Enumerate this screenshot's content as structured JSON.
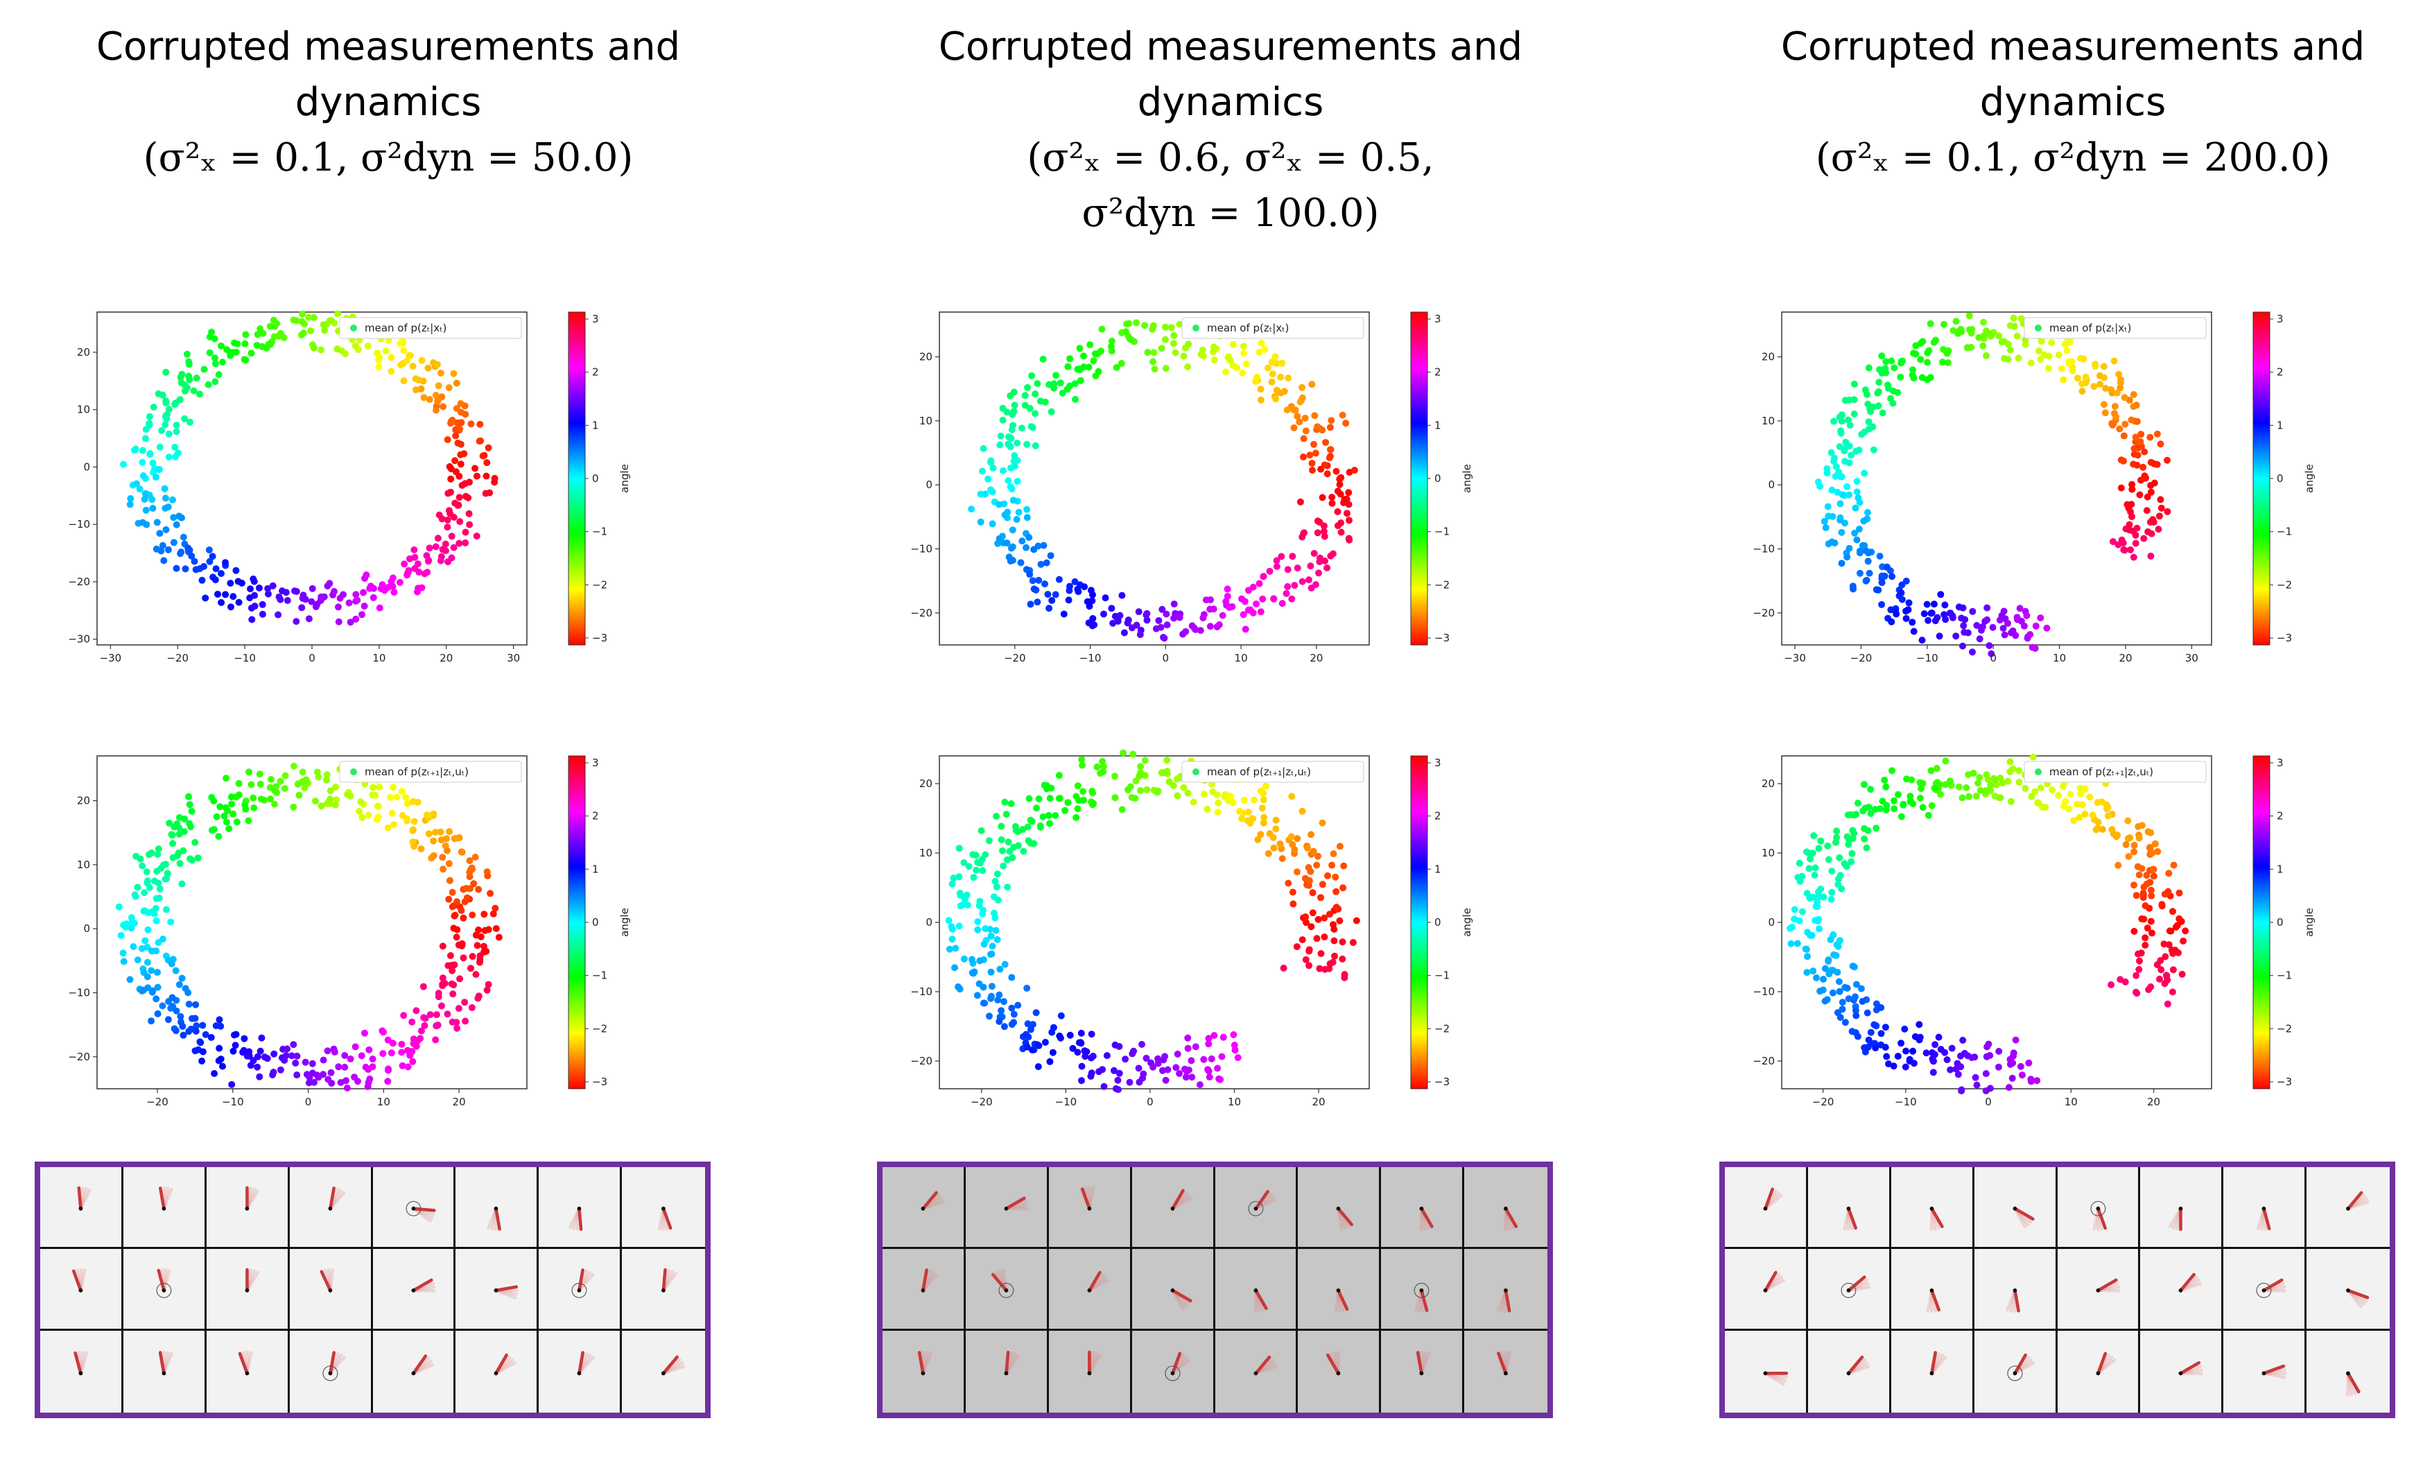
{
  "panels": [
    {
      "title_line1": "Corrupted measurements and",
      "title_line2": "dynamics",
      "title_line3": "(σ²ₓ = 0.1, σ²dyn = 50.0)",
      "title_line4": "",
      "grid_background": "light"
    },
    {
      "title_line1": "Corrupted measurements and",
      "title_line2": "dynamics",
      "title_line3": "(σ²ₓ = 0.6, σ²ₓ = 0.5,",
      "title_line4": "σ²dyn = 100.0)",
      "grid_background": "grey"
    },
    {
      "title_line1": "Corrupted measurements and",
      "title_line2": "dynamics",
      "title_line3": "(σ²ₓ = 0.1, σ²dyn = 200.0)",
      "title_line4": "",
      "grid_background": "light"
    }
  ],
  "chart_data": [
    {
      "type": "scatter",
      "panel": 0,
      "legend": "mean of p(zₜ|xₜ)",
      "colorbar_label": "angle",
      "colorbar_ticks": [
        "3",
        "2",
        "1",
        "0",
        "−1",
        "−2",
        "−3"
      ],
      "x_ticks": [
        "−30",
        "−20",
        "−10",
        "0",
        "10",
        "20",
        "30"
      ],
      "y_ticks": [
        "20",
        "10",
        "0",
        "−10",
        "−20",
        "−30"
      ],
      "xlim": [
        -32,
        32
      ],
      "ylim": [
        -31,
        27
      ],
      "shape": "ring",
      "radius": 24,
      "start_angle_deg": 90,
      "gap_deg": 0,
      "n_points": 420
    },
    {
      "type": "scatter",
      "panel": 1,
      "legend": "mean of p(zₜ|xₜ)",
      "colorbar_label": "angle",
      "colorbar_ticks": [
        "3",
        "2",
        "1",
        "0",
        "−1",
        "−2",
        "−3"
      ],
      "x_ticks": [
        "−20",
        "−10",
        "0",
        "10",
        "20"
      ],
      "y_ticks": [
        "20",
        "10",
        "0",
        "−10",
        "−20"
      ],
      "xlim": [
        -30,
        27
      ],
      "ylim": [
        -25,
        27
      ],
      "shape": "ring",
      "radius": 22,
      "start_angle_deg": 20,
      "gap_deg": 0,
      "n_points": 400
    },
    {
      "type": "scatter",
      "panel": 2,
      "legend": "mean of p(zₜ|xₜ)",
      "colorbar_label": "angle",
      "colorbar_ticks": [
        "3",
        "2",
        "1",
        "0",
        "−1",
        "−2",
        "−3"
      ],
      "x_ticks": [
        "−30",
        "−20",
        "−10",
        "0",
        "10",
        "20",
        "30"
      ],
      "y_ticks": [
        "20",
        "10",
        "0",
        "−10",
        "−20"
      ],
      "xlim": [
        -32,
        33
      ],
      "ylim": [
        -25,
        27
      ],
      "shape": "arc",
      "radius": 23,
      "start_angle_deg": -30,
      "gap_deg": 40,
      "n_points": 420
    },
    {
      "type": "scatter",
      "panel": 0,
      "legend": "mean of p(zₜ₊₁|zₜ,uₜ)",
      "colorbar_label": "angle",
      "colorbar_ticks": [
        "3",
        "2",
        "1",
        "0",
        "−1",
        "−2",
        "−3"
      ],
      "x_ticks": [
        "−20",
        "−10",
        "0",
        "10",
        "20"
      ],
      "y_ticks": [
        "20",
        "10",
        "0",
        "−10",
        "−20"
      ],
      "xlim": [
        -28,
        29
      ],
      "ylim": [
        -25,
        27
      ],
      "shape": "ring",
      "radius": 22,
      "start_angle_deg": 300,
      "gap_deg": 0,
      "n_points": 480
    },
    {
      "type": "scatter",
      "panel": 1,
      "legend": "mean of p(zₜ₊₁|zₜ,uₜ)",
      "colorbar_label": "angle",
      "colorbar_ticks": [
        "3",
        "2",
        "1",
        "0",
        "−1",
        "−2",
        "−3"
      ],
      "x_ticks": [
        "−20",
        "−10",
        "0",
        "10",
        "20"
      ],
      "y_ticks": [
        "20",
        "10",
        "0",
        "−10",
        "−20"
      ],
      "xlim": [
        -25,
        26
      ],
      "ylim": [
        -24,
        24
      ],
      "shape": "arc",
      "radius": 21,
      "start_angle_deg": -20,
      "gap_deg": 40,
      "n_points": 420
    },
    {
      "type": "scatter",
      "panel": 2,
      "legend": "mean of p(zₜ₊₁|zₜ,uₜ)",
      "colorbar_label": "angle",
      "colorbar_ticks": [
        "3",
        "2",
        "1",
        "0",
        "−1",
        "−2",
        "−3"
      ],
      "x_ticks": [
        "−20",
        "−10",
        "0",
        "10",
        "20"
      ],
      "y_ticks": [
        "20",
        "10",
        "0",
        "−10",
        "−20"
      ],
      "xlim": [
        -25,
        27
      ],
      "ylim": [
        -24,
        24
      ],
      "shape": "arc",
      "radius": 21,
      "start_angle_deg": -30,
      "gap_deg": 45,
      "n_points": 440
    }
  ],
  "pendulum_angles": [
    [
      -5,
      -10,
      0,
      10,
      95,
      170,
      175,
      160,
      -20,
      -15,
      0,
      -25,
      60,
      80,
      10,
      5,
      -15,
      -10,
      -20,
      10,
      35,
      30,
      10,
      40
    ],
    [
      40,
      60,
      -20,
      30,
      35,
      140,
      150,
      150,
      10,
      -40,
      30,
      120,
      150,
      155,
      165,
      170,
      -10,
      5,
      0,
      20,
      40,
      -30,
      -10,
      -20
    ],
    [
      20,
      160,
      150,
      120,
      160,
      180,
      165,
      40,
      30,
      50,
      160,
      170,
      60,
      40,
      60,
      110,
      90,
      40,
      10,
      30,
      20,
      60,
      70,
      150
    ]
  ]
}
